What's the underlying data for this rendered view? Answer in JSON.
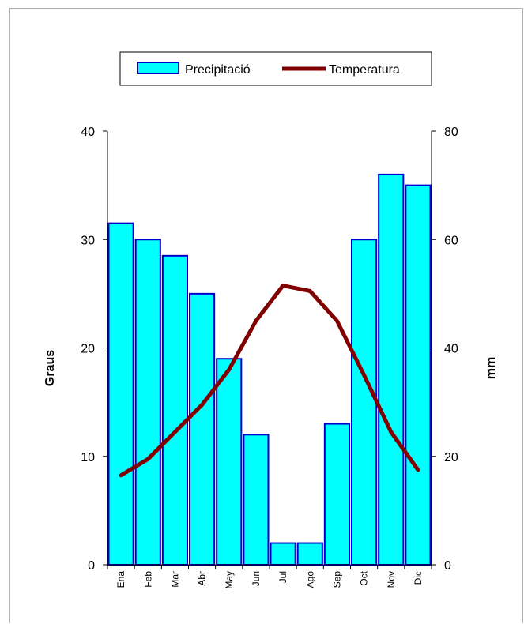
{
  "chart_data": {
    "type": "bar",
    "categories": [
      "Ena",
      "Feb",
      "Mar",
      "Abr",
      "May",
      "Jun",
      "Jul",
      "Ago",
      "Sep",
      "Oct",
      "Nov",
      "Dic"
    ],
    "series": [
      {
        "name": "Precipitació",
        "kind": "bar",
        "axis": "right",
        "color": "#00ffff",
        "edge_color": "#0000cc",
        "values": [
          63,
          60,
          57,
          50,
          38,
          24,
          4,
          4,
          26,
          60,
          72,
          70
        ]
      },
      {
        "name": "Temperatura",
        "kind": "line",
        "axis": "left",
        "color": "#800000",
        "values": [
          16.5,
          19.5,
          24.5,
          29.5,
          36,
          45,
          51.5,
          50.5,
          45,
          35,
          24.5,
          17.5
        ]
      }
    ],
    "y_left": {
      "label": "Graus",
      "ylim": [
        0,
        40
      ],
      "ticks": [
        "0",
        "10",
        "20",
        "30",
        "40"
      ]
    },
    "y_right": {
      "label": "mm",
      "ylim": [
        0,
        80
      ],
      "ticks": [
        "0",
        "20",
        "40",
        "60",
        "80"
      ]
    },
    "grid": false,
    "legend": "top"
  }
}
